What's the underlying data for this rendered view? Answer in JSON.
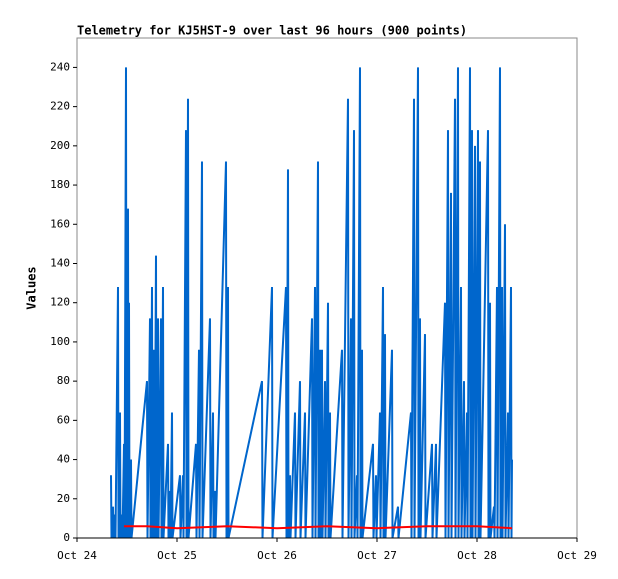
{
  "chart_data": {
    "type": "line",
    "title": "Telemetry for KJ5HST-9 over last 96 hours (900 points)",
    "y_label": "Values",
    "xlim": [
      0,
      5
    ],
    "xticks": [
      {
        "value": 0,
        "label": "Oct 24"
      },
      {
        "value": 1,
        "label": "Oct 25"
      },
      {
        "value": 2,
        "label": "Oct 26"
      },
      {
        "value": 3,
        "label": "Oct 27"
      },
      {
        "value": 4,
        "label": "Oct 28"
      },
      {
        "value": 5,
        "label": "Oct 29"
      }
    ],
    "ylim": [
      0,
      255
    ],
    "yticks": [
      0,
      20,
      40,
      60,
      80,
      100,
      120,
      140,
      160,
      180,
      200,
      220,
      240
    ],
    "series": [
      {
        "color": "#0066cc",
        "x": [
          0.34,
          0.345,
          0.36,
          0.365,
          0.38,
          0.385,
          0.41,
          0.415,
          0.43,
          0.435,
          0.45,
          0.455,
          0.47,
          0.475,
          0.49,
          0.495,
          0.51,
          0.515,
          0.52,
          0.525,
          0.54,
          0.545,
          0.7,
          0.705,
          0.73,
          0.735,
          0.75,
          0.755,
          0.77,
          0.775,
          0.79,
          0.795,
          0.81,
          0.815,
          0.84,
          0.845,
          0.86,
          0.865,
          0.91,
          0.915,
          0.93,
          0.935,
          0.95,
          0.955,
          1.03,
          1.035,
          1.06,
          1.065,
          1.09,
          1.095,
          1.11,
          1.115,
          1.19,
          1.195,
          1.22,
          1.225,
          1.25,
          1.255,
          1.33,
          1.335,
          1.36,
          1.365,
          1.38,
          1.385,
          1.49,
          1.495,
          1.51,
          1.515,
          1.85,
          1.855,
          1.95,
          1.955,
          2.09,
          2.095,
          2.11,
          2.115,
          2.13,
          2.135,
          2.18,
          2.185,
          2.23,
          2.235,
          2.28,
          2.285,
          2.35,
          2.355,
          2.38,
          2.385,
          2.41,
          2.415,
          2.43,
          2.435,
          2.45,
          2.455,
          2.48,
          2.485,
          2.51,
          2.515,
          2.53,
          2.535,
          2.65,
          2.655,
          2.71,
          2.715,
          2.74,
          2.745,
          2.77,
          2.775,
          2.8,
          2.805,
          2.83,
          2.835,
          2.85,
          2.855,
          2.96,
          2.965,
          2.99,
          2.995,
          3.03,
          3.035,
          3.06,
          3.065,
          3.08,
          3.085,
          3.15,
          3.155,
          3.21,
          3.215,
          3.34,
          3.345,
          3.37,
          3.375,
          3.41,
          3.415,
          3.43,
          3.435,
          3.48,
          3.485,
          3.55,
          3.555,
          3.59,
          3.595,
          3.68,
          3.685,
          3.71,
          3.715,
          3.74,
          3.745,
          3.78,
          3.785,
          3.81,
          3.815,
          3.84,
          3.845,
          3.87,
          3.875,
          3.9,
          3.905,
          3.93,
          3.935,
          3.95,
          3.955,
          3.98,
          3.985,
          4.01,
          4.015,
          4.03,
          4.035,
          4.11,
          4.115,
          4.13,
          4.135,
          4.17,
          4.175,
          4.2,
          4.205,
          4.23,
          4.235,
          4.25,
          4.255,
          4.28,
          4.285,
          4.31,
          4.315,
          4.34,
          4.345,
          4.35
        ],
        "values": [
          32,
          0,
          16,
          0,
          12,
          0,
          128,
          0,
          64,
          0,
          12,
          0,
          48,
          0,
          240,
          0,
          168,
          0,
          120,
          0,
          40,
          0,
          80,
          0,
          112,
          0,
          128,
          0,
          96,
          0,
          144,
          0,
          112,
          0,
          112,
          0,
          128,
          0,
          48,
          0,
          24,
          0,
          64,
          0,
          32,
          0,
          32,
          0,
          208,
          0,
          224,
          0,
          48,
          0,
          96,
          0,
          192,
          0,
          112,
          0,
          64,
          0,
          24,
          0,
          192,
          0,
          128,
          0,
          80,
          0,
          128,
          0,
          128,
          0,
          188,
          0,
          32,
          0,
          64,
          0,
          80,
          0,
          64,
          0,
          112,
          0,
          128,
          0,
          192,
          0,
          96,
          0,
          96,
          0,
          80,
          0,
          120,
          0,
          64,
          0,
          96,
          0,
          224,
          0,
          112,
          0,
          208,
          0,
          32,
          0,
          240,
          0,
          96,
          0,
          48,
          0,
          32,
          0,
          64,
          0,
          128,
          0,
          104,
          0,
          96,
          0,
          16,
          0,
          64,
          0,
          224,
          0,
          240,
          0,
          112,
          0,
          104,
          0,
          48,
          0,
          48,
          0,
          120,
          0,
          208,
          0,
          176,
          0,
          224,
          0,
          240,
          0,
          128,
          0,
          80,
          0,
          64,
          0,
          240,
          0,
          208,
          0,
          200,
          0,
          208,
          0,
          192,
          0,
          208,
          0,
          120,
          0,
          16,
          0,
          128,
          0,
          240,
          0,
          128,
          0,
          160,
          0,
          64,
          0,
          128,
          0,
          40
        ]
      },
      {
        "color": "#ff0000",
        "x": [
          0.47,
          0.7,
          1.0,
          1.5,
          2.0,
          2.5,
          3.0,
          3.5,
          4.0,
          4.35
        ],
        "values": [
          6,
          6,
          5,
          6,
          5,
          6,
          5,
          6,
          6,
          5
        ]
      }
    ]
  }
}
